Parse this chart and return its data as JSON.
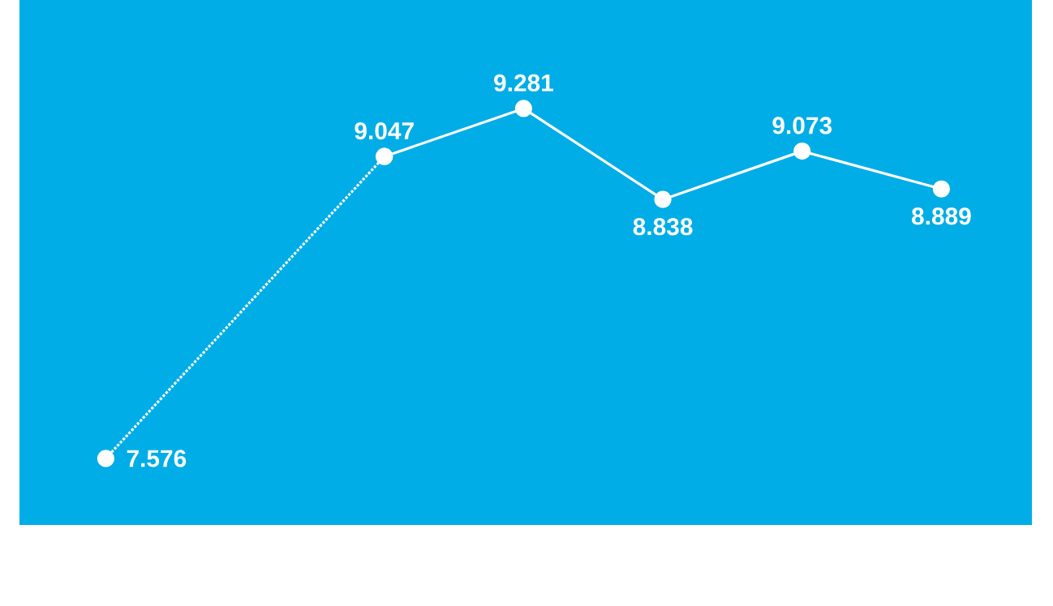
{
  "chart_data": {
    "type": "line",
    "categories": [
      null,
      null,
      null,
      null,
      null,
      null,
      null
    ],
    "series": [
      {
        "color": "#ffffff",
        "line_style": "dotted",
        "values": [
          7.576,
          null,
          9.047,
          null,
          null,
          null,
          null
        ],
        "value_labels": [
          "7.576",
          null,
          null,
          null,
          null,
          null,
          null
        ]
      },
      {
        "color": "#ffffff",
        "line_style": "solid",
        "values": [
          null,
          null,
          9.047,
          9.281,
          8.838,
          9.073,
          8.889
        ],
        "value_labels": [
          null,
          null,
          "9.047",
          "9.281",
          "8.838",
          "9.073",
          "8.889"
        ]
      }
    ],
    "marker": "circle",
    "tick_labels": false
  }
}
